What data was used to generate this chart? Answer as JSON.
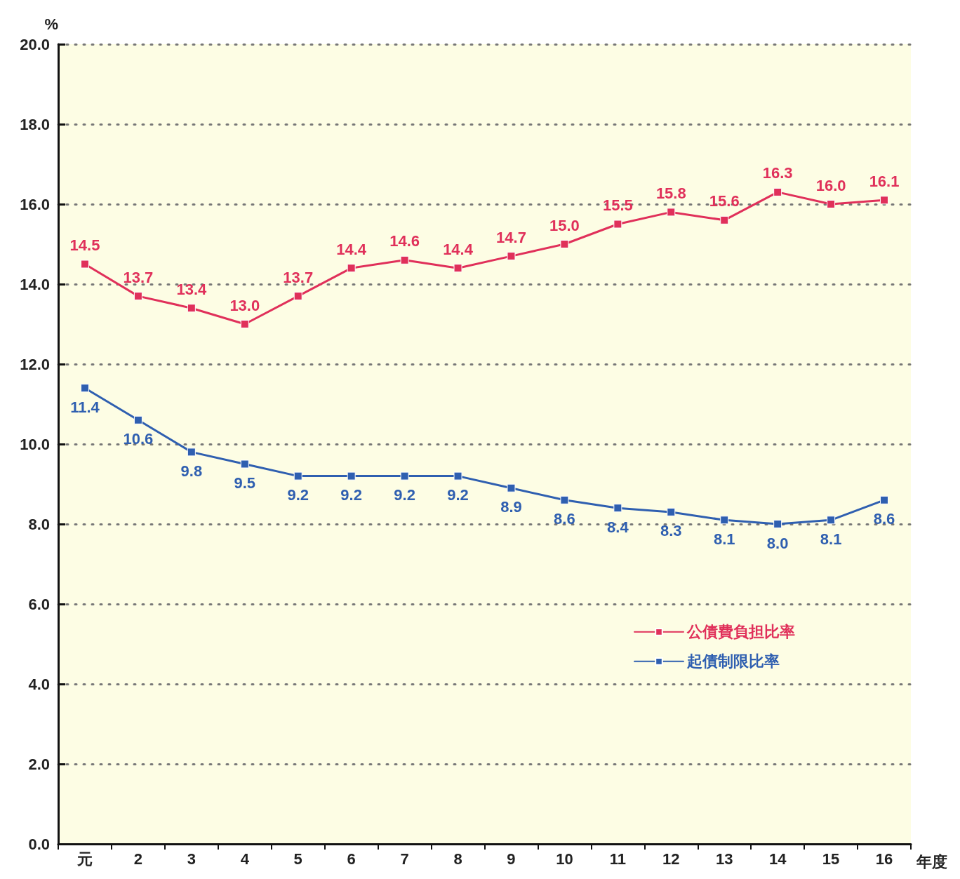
{
  "chart_data": {
    "type": "line",
    "ylabel": "%",
    "xlabel": "年度",
    "categories": [
      "元",
      "2",
      "3",
      "4",
      "5",
      "6",
      "7",
      "8",
      "9",
      "10",
      "11",
      "12",
      "13",
      "14",
      "15",
      "16"
    ],
    "series": [
      {
        "name": "公債費負担比率",
        "color": "#e0305a",
        "values": [
          14.5,
          13.7,
          13.4,
          13.0,
          13.7,
          14.4,
          14.6,
          14.4,
          14.7,
          15.0,
          15.5,
          15.8,
          15.6,
          16.3,
          16.0,
          16.1
        ],
        "value_labels": [
          "14.5",
          "13.7",
          "13.4",
          "13.0",
          "13.7",
          "14.4",
          "14.6",
          "14.4",
          "14.7",
          "15.0",
          "15.5",
          "15.8",
          "15.6",
          "16.3",
          "16.0",
          "16.1"
        ]
      },
      {
        "name": "起債制限比率",
        "color": "#2f5fb0",
        "values": [
          11.4,
          10.6,
          9.8,
          9.5,
          9.2,
          9.2,
          9.2,
          9.2,
          8.9,
          8.6,
          8.4,
          8.3,
          8.1,
          8.0,
          8.1,
          8.6
        ],
        "value_labels": [
          "11.4",
          "10.6",
          "9.8",
          "9.5",
          "9.2",
          "9.2",
          "9.2",
          "9.2",
          "8.9",
          "8.6",
          "8.4",
          "8.3",
          "8.1",
          "8.0",
          "8.1",
          "8.6"
        ]
      }
    ],
    "ylim": [
      0,
      20
    ],
    "yticks": [
      {
        "value": 0,
        "label": "0.0"
      },
      {
        "value": 2,
        "label": "2.0"
      },
      {
        "value": 4,
        "label": "4.0"
      },
      {
        "value": 6,
        "label": "6.0"
      },
      {
        "value": 8,
        "label": "8.0"
      },
      {
        "value": 10,
        "label": "10.0"
      },
      {
        "value": 12,
        "label": "12.0"
      },
      {
        "value": 14,
        "label": "14.0"
      },
      {
        "value": 16,
        "label": "16.0"
      },
      {
        "value": 18,
        "label": "18.0"
      },
      {
        "value": 20,
        "label": "20.0"
      }
    ],
    "grid": "y",
    "legend": "right",
    "marker": "square",
    "line_style": "solid"
  }
}
